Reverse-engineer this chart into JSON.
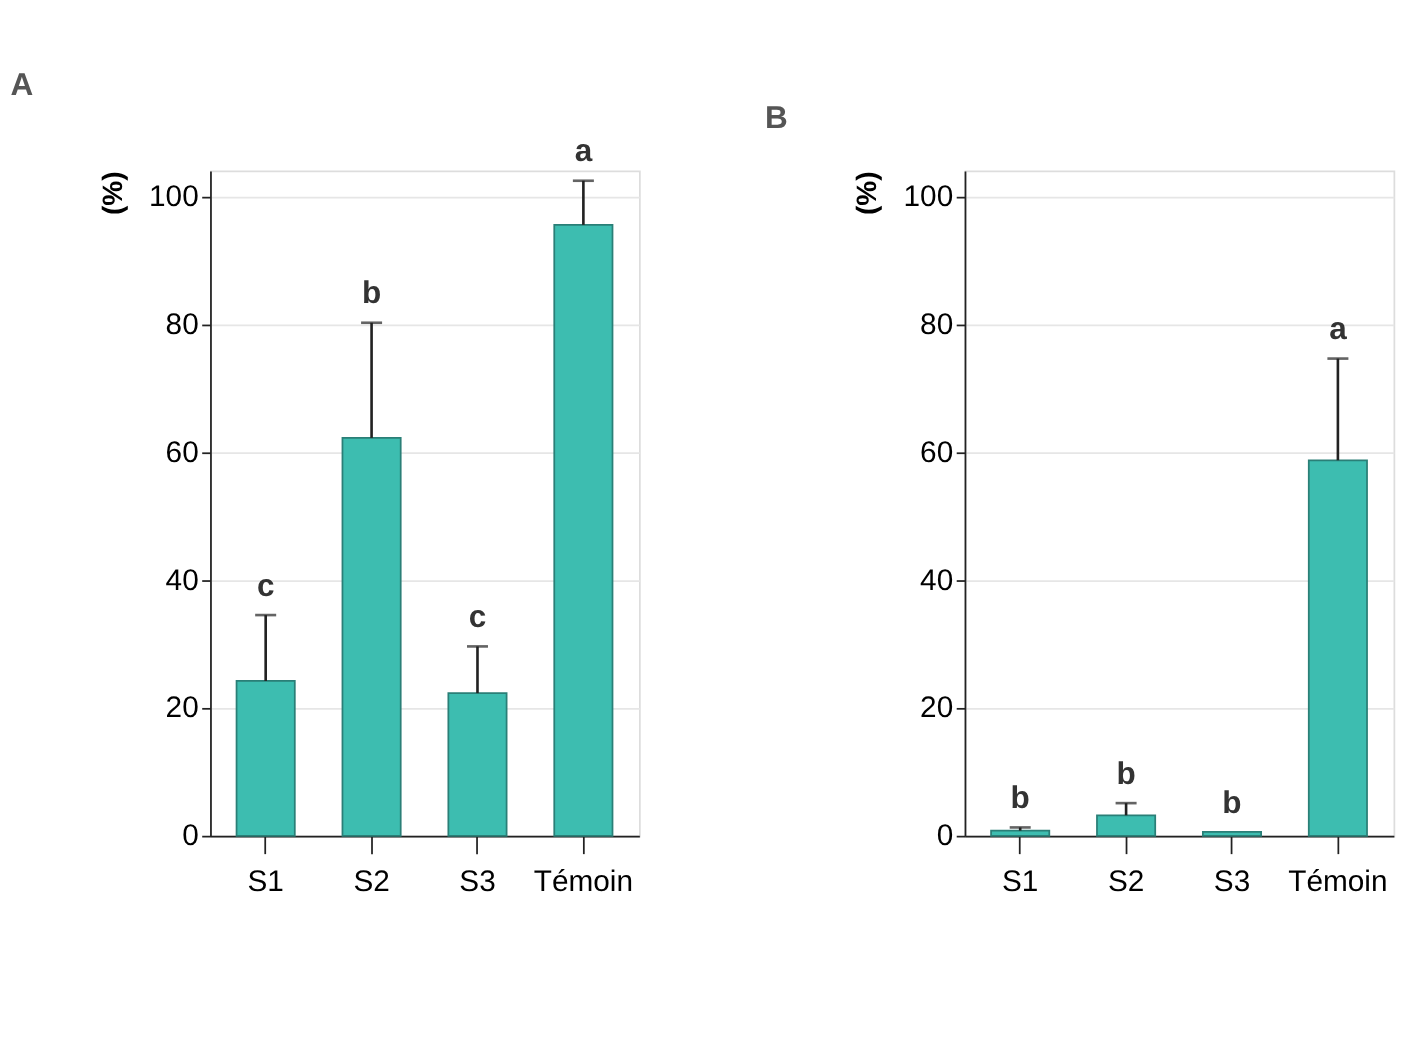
{
  "chart_data": [
    {
      "type": "bar",
      "title": "A",
      "ylabel": "(%)",
      "categories": [
        "S1",
        "S2",
        "S3",
        "Témoin"
      ],
      "series": [
        {
          "color": "#3dbdb0",
          "values": [
            24.2,
            62.2,
            22.3,
            95.5
          ],
          "errors": [
            [
              24.2,
              34.5
            ],
            [
              62.2,
              80.2
            ],
            [
              22.3,
              29.6
            ],
            [
              95.5,
              102.4
            ]
          ]
        }
      ],
      "ylim": [
        0,
        104
      ],
      "yticks": [
        0,
        20,
        40,
        60,
        80,
        100
      ],
      "grid": "y",
      "annotations": [
        {
          "text": "c",
          "x": "S1",
          "y": 34.5
        },
        {
          "text": "b",
          "x": "S2",
          "y": 80.2
        },
        {
          "text": "c",
          "x": "S3",
          "y": 29.6
        },
        {
          "text": "a",
          "x": "Témoin",
          "y": 102.4
        }
      ]
    },
    {
      "type": "bar",
      "title": "B",
      "ylabel": "(%)",
      "categories": [
        "S1",
        "S2",
        "S3",
        "Témoin"
      ],
      "series": [
        {
          "color": "#3dbdb0",
          "values": [
            0.8,
            3.2,
            0.6,
            58.7
          ],
          "errors": [
            [
              0.8,
              1.3
            ],
            [
              3.2,
              5.1
            ],
            null,
            [
              58.7,
              74.6
            ]
          ]
        }
      ],
      "ylim": [
        0,
        104
      ],
      "yticks": [
        0,
        20,
        40,
        60,
        80,
        100
      ],
      "grid": "y",
      "annotations": [
        {
          "text": "b",
          "x": "S1",
          "y": 1.3
        },
        {
          "text": "b",
          "x": "S2",
          "y": 5.1
        },
        {
          "text": "b",
          "x": "S3",
          "y": 0.6
        },
        {
          "text": "a",
          "x": "Témoin",
          "y": 74.6
        }
      ]
    }
  ]
}
